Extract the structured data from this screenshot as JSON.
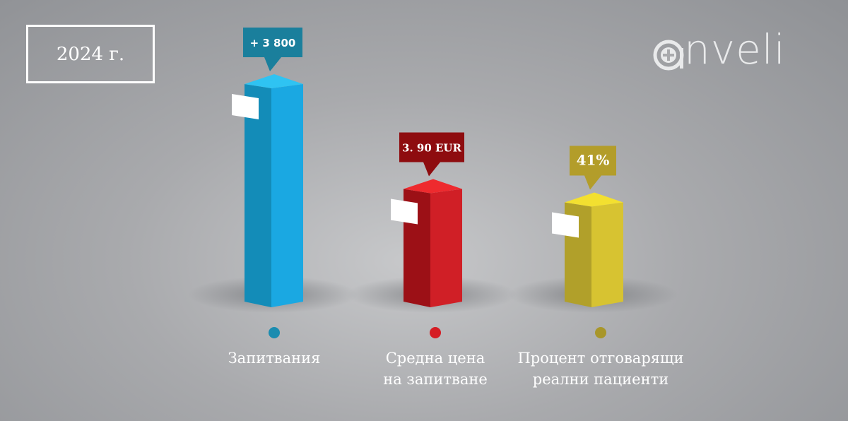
{
  "year_label": "2024 г.",
  "logo": {
    "text": "nveli",
    "icon": "plus-circle-icon"
  },
  "chart_data": {
    "type": "bar",
    "title": "",
    "categories": [
      "Запитвания",
      "Средна цена на запитване",
      "Процент отговарящи реални пациенти"
    ],
    "category_lines": [
      [
        "Запитвания"
      ],
      [
        "Средна цена",
        "на запитване"
      ],
      [
        "Процент отговарящи",
        "реални пациенти"
      ]
    ],
    "value_labels": [
      "+ 3 800",
      "3. 90 EUR",
      "41%"
    ],
    "values": [
      3800,
      3.9,
      41
    ],
    "units": [
      "",
      "EUR",
      "%"
    ],
    "relative_heights": [
      1.0,
      0.53,
      0.47
    ],
    "colors": {
      "bar1": {
        "front": "#1aa8e2",
        "side": "#138cb8",
        "top": "#2fc3f2",
        "label": "#1a7f9c",
        "dot": "#1a8cb0"
      },
      "bar2": {
        "front": "#d01f26",
        "side": "#9c1016",
        "top": "#ee2a2e",
        "label": "#8e0c0f",
        "dot": "#d51d24"
      },
      "bar3": {
        "front": "#d7c331",
        "side": "#b1a02a",
        "top": "#f3e030",
        "label": "#b39d2a",
        "dot": "#a8962a"
      }
    },
    "grid": false,
    "legend": "none"
  }
}
